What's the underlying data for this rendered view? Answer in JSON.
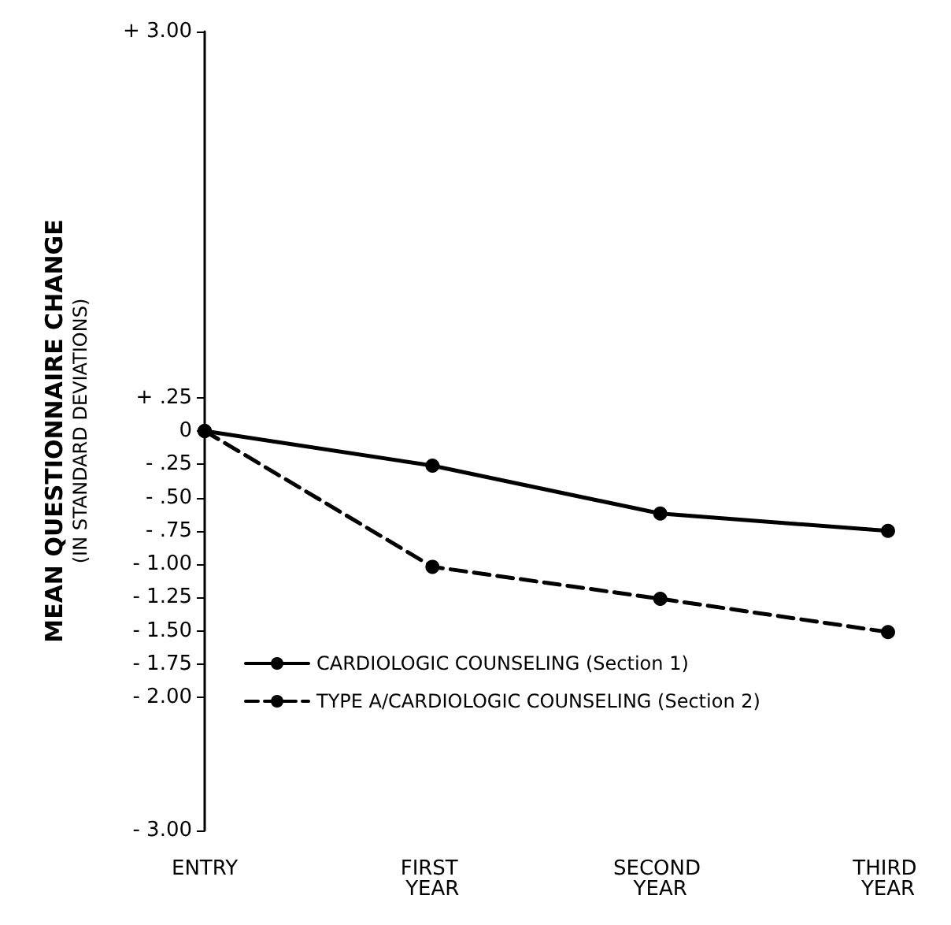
{
  "chart_data": {
    "type": "line",
    "ylabel": "MEAN QUESTIONNAIRE CHANGE (IN STANDARD DEVIATIONS)",
    "categories": [
      "ENTRY",
      "FIRST YEAR",
      "SECOND YEAR",
      "THIRD YEAR"
    ],
    "series": [
      {
        "name": "CARDIOLOGIC COUNSELING (Section 1)",
        "color": "#000000",
        "line_style": "solid",
        "values": [
          0,
          -0.26,
          -0.62,
          -0.75
        ]
      },
      {
        "name": "TYPE A/CARDIOLOGIC COUNSELING (Section 2)",
        "color": "#000000",
        "line_style": "dashed",
        "values": [
          0,
          -1.02,
          -1.26,
          -1.51
        ]
      }
    ],
    "ylim": [
      -3,
      3
    ],
    "yticks": [
      {
        "value": 3,
        "label": "+ 3.00"
      },
      {
        "value": 0.25,
        "label": "+ .25"
      },
      0,
      {
        "value": -0.25,
        "label": "- .25"
      },
      {
        "value": -0.5,
        "label": "- .50"
      },
      {
        "value": -0.75,
        "label": "- .75"
      },
      {
        "value": -1,
        "label": "- 1.00"
      },
      {
        "value": -1.25,
        "label": "- 1.25"
      },
      {
        "value": -1.5,
        "label": "- 1.50"
      },
      {
        "value": -1.75,
        "label": "- 1.75"
      },
      {
        "value": -2,
        "label": "- 2.00"
      },
      {
        "value": -3,
        "label": "- 3.00"
      }
    ],
    "marker": "circle",
    "grid": false,
    "legend": "bottom left"
  }
}
